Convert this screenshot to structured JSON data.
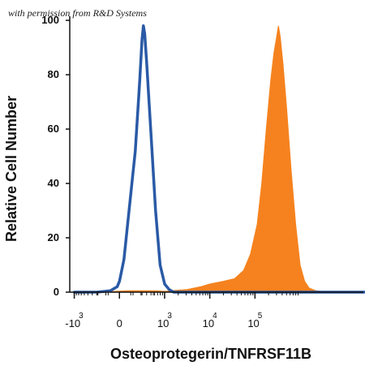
{
  "watermark": "with permission from R&D Systems",
  "chart_data": {
    "type": "area",
    "title": "",
    "xlabel": "Osteoprotegerin/TNFRSF11B",
    "ylabel": "Relative Cell Number",
    "ylim": [
      0,
      100
    ],
    "yticks": [
      0,
      20,
      40,
      60,
      80,
      100
    ],
    "xscale": "biexponential",
    "xticks": [
      {
        "base": "-10",
        "exp": "3"
      },
      {
        "base": "0",
        "exp": ""
      },
      {
        "base": "10",
        "exp": "3"
      },
      {
        "base": "10",
        "exp": "4"
      },
      {
        "base": "10",
        "exp": "5"
      }
    ],
    "grid": false,
    "legend": "none",
    "series": [
      {
        "style": "outline",
        "color": "#2a5aa6",
        "points": [
          [
            -1.0,
            0
          ],
          [
            -0.5,
            0
          ],
          [
            -0.2,
            0.5
          ],
          [
            -0.05,
            2
          ],
          [
            0.0,
            4
          ],
          [
            0.1,
            12
          ],
          [
            0.2,
            28
          ],
          [
            0.35,
            52
          ],
          [
            0.45,
            78
          ],
          [
            0.5,
            93
          ],
          [
            0.53,
            98
          ],
          [
            0.56,
            95
          ],
          [
            0.6,
            85
          ],
          [
            0.7,
            58
          ],
          [
            0.8,
            30
          ],
          [
            0.9,
            10
          ],
          [
            1.0,
            3
          ],
          [
            1.1,
            1
          ],
          [
            1.2,
            0
          ],
          [
            5.5,
            0
          ]
        ]
      },
      {
        "style": "filled",
        "color": "#f5821f",
        "points": [
          [
            -0.5,
            0
          ],
          [
            0.2,
            0.5
          ],
          [
            0.8,
            0.5
          ],
          [
            1.0,
            0.3
          ],
          [
            1.2,
            0.6
          ],
          [
            1.5,
            1
          ],
          [
            1.8,
            2
          ],
          [
            2.0,
            3
          ],
          [
            2.3,
            4
          ],
          [
            2.55,
            5
          ],
          [
            2.75,
            8
          ],
          [
            2.9,
            14
          ],
          [
            3.05,
            25
          ],
          [
            3.15,
            40
          ],
          [
            3.25,
            60
          ],
          [
            3.35,
            78
          ],
          [
            3.42,
            88
          ],
          [
            3.48,
            94
          ],
          [
            3.52,
            98
          ],
          [
            3.56,
            94
          ],
          [
            3.62,
            84
          ],
          [
            3.7,
            68
          ],
          [
            3.8,
            45
          ],
          [
            3.9,
            25
          ],
          [
            4.0,
            10
          ],
          [
            4.1,
            4
          ],
          [
            4.2,
            1.5
          ],
          [
            4.35,
            0.5
          ],
          [
            4.6,
            0
          ],
          [
            5.5,
            0
          ]
        ]
      }
    ]
  }
}
